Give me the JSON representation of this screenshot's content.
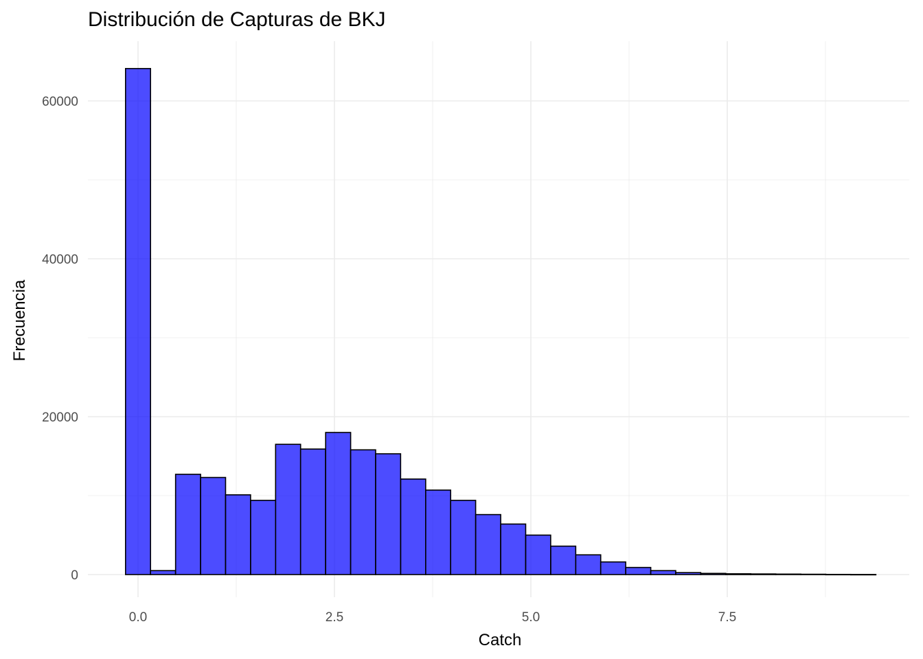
{
  "chart_data": {
    "type": "bar",
    "title": "Distribución de Capturas de BKJ",
    "xlabel": "Catch",
    "ylabel": "Frecuencia",
    "bin_width": 0.3183,
    "bins": [
      {
        "x": 0.0,
        "count": 64100
      },
      {
        "x": 0.318,
        "count": 500
      },
      {
        "x": 0.637,
        "count": 12700
      },
      {
        "x": 0.955,
        "count": 12300
      },
      {
        "x": 1.273,
        "count": 10100
      },
      {
        "x": 1.592,
        "count": 9400
      },
      {
        "x": 1.91,
        "count": 16500
      },
      {
        "x": 2.228,
        "count": 15900
      },
      {
        "x": 2.547,
        "count": 18000
      },
      {
        "x": 2.865,
        "count": 15800
      },
      {
        "x": 3.183,
        "count": 15300
      },
      {
        "x": 3.502,
        "count": 12100
      },
      {
        "x": 3.82,
        "count": 10700
      },
      {
        "x": 4.138,
        "count": 9400
      },
      {
        "x": 4.457,
        "count": 7600
      },
      {
        "x": 4.775,
        "count": 6400
      },
      {
        "x": 5.093,
        "count": 5000
      },
      {
        "x": 5.412,
        "count": 3600
      },
      {
        "x": 5.73,
        "count": 2500
      },
      {
        "x": 6.048,
        "count": 1600
      },
      {
        "x": 6.367,
        "count": 900
      },
      {
        "x": 6.685,
        "count": 500
      },
      {
        "x": 7.003,
        "count": 250
      },
      {
        "x": 7.322,
        "count": 150
      },
      {
        "x": 7.64,
        "count": 100
      },
      {
        "x": 7.958,
        "count": 80
      },
      {
        "x": 8.277,
        "count": 60
      },
      {
        "x": 8.595,
        "count": 40
      },
      {
        "x": 8.913,
        "count": 20
      },
      {
        "x": 9.232,
        "count": 10
      }
    ],
    "xlim": [
      -0.5,
      9.5
    ],
    "ylim": [
      -2000,
      68000
    ],
    "xticks": [
      0.0,
      2.5,
      5.0,
      7.5
    ],
    "xtick_labels": [
      "0.0",
      "2.5",
      "5.0",
      "7.5"
    ],
    "yticks": [
      0,
      20000,
      40000,
      60000
    ],
    "ytick_labels": [
      "0",
      "20000",
      "40000",
      "60000"
    ],
    "grid": true,
    "fill_color": "#0000ff",
    "fill_opacity": 0.7,
    "outline_color": "#000000",
    "grid_color": "#ebebeb"
  }
}
